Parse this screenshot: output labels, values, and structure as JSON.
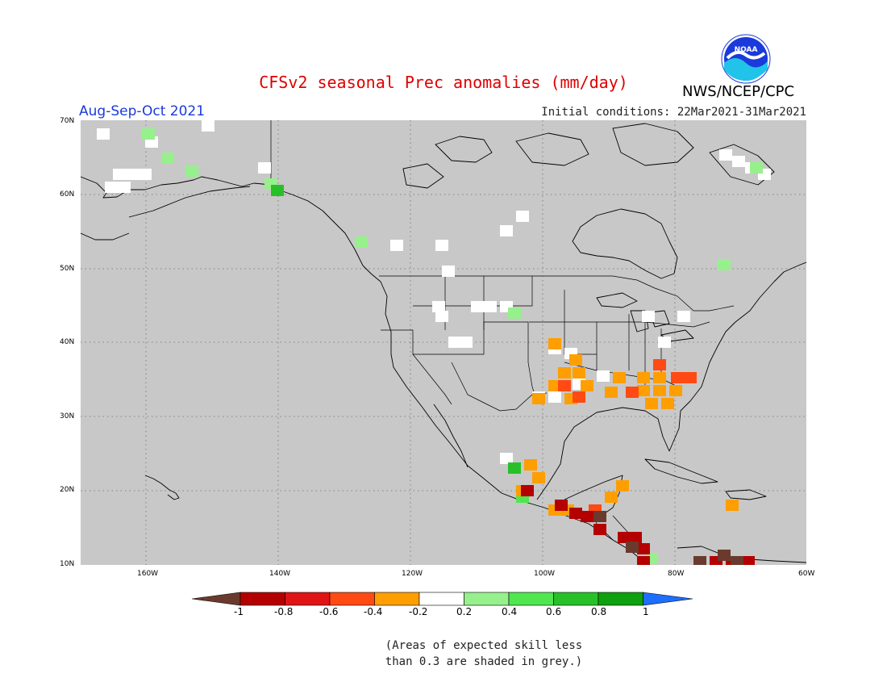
{
  "header": {
    "title": "CFSv2 seasonal Prec anomalies (mm/day)",
    "season": "Aug-Sep-Oct 2021",
    "initial_conditions": "Initial conditions: 22Mar2021-31Mar2021",
    "agency": "NWS/NCEP/CPC",
    "logo_text": "NOAA"
  },
  "map": {
    "lat_labels": [
      "70N",
      "60N",
      "50N",
      "40N",
      "30N",
      "20N",
      "10N"
    ],
    "lon_labels": [
      "160W",
      "140W",
      "120W",
      "100W",
      "80W",
      "60W"
    ],
    "background_color": "#c8c8c8",
    "grid_style": "dotted"
  },
  "colorbar": {
    "labels": [
      "-1",
      "-0.8",
      "-0.6",
      "-0.4",
      "-0.2",
      "0.2",
      "0.4",
      "0.6",
      "0.8",
      "1"
    ],
    "colors": [
      "#6b3a2e",
      "#b40000",
      "#e01414",
      "#ff4a14",
      "#ff9e00",
      "#ffffff",
      "#96f08c",
      "#50e650",
      "#28c028",
      "#0ea00e",
      "#1e6eff"
    ]
  },
  "footnote": {
    "line1": "(Areas of expected skill less",
    "line2": "than 0.3 are shaded in grey.)"
  }
}
